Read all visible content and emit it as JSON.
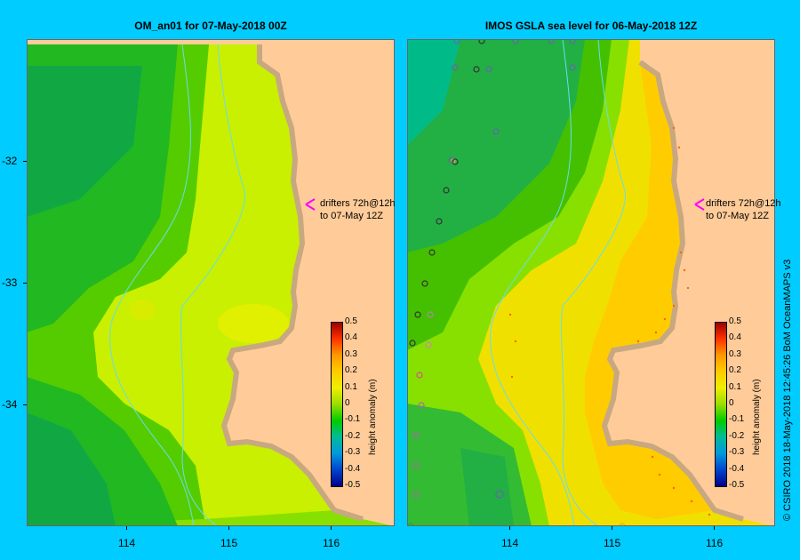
{
  "panels": [
    {
      "title": "OM_an01  for 07-May-2018 00Z"
    },
    {
      "title": "IMOS  GSLA sea level   for 06-May-2018 12Z"
    }
  ],
  "annotation": {
    "line1": "drifters 72h@12h",
    "line2": "to 07-May 12Z"
  },
  "colorbar": {
    "label": "height anomaly (m)",
    "ticks": [
      "0.5",
      "0.4",
      "0.3",
      "0.2",
      "0.1",
      "0",
      "-0.1",
      "-0.2",
      "-0.3",
      "-0.4",
      "-0.5"
    ]
  },
  "axes": {
    "lat_ticks": [
      "-32",
      "-33",
      "-34"
    ],
    "lon_ticks": [
      "114",
      "115",
      "116"
    ]
  },
  "credit": "© CSIRO 2018    18-May-2018 12:45:26 BoM OceanMAPS v3",
  "colors": {
    "background": "#00ccff",
    "land": "#ffcc99",
    "coast": "#c8a880",
    "arrow": "#ff00ff"
  }
}
